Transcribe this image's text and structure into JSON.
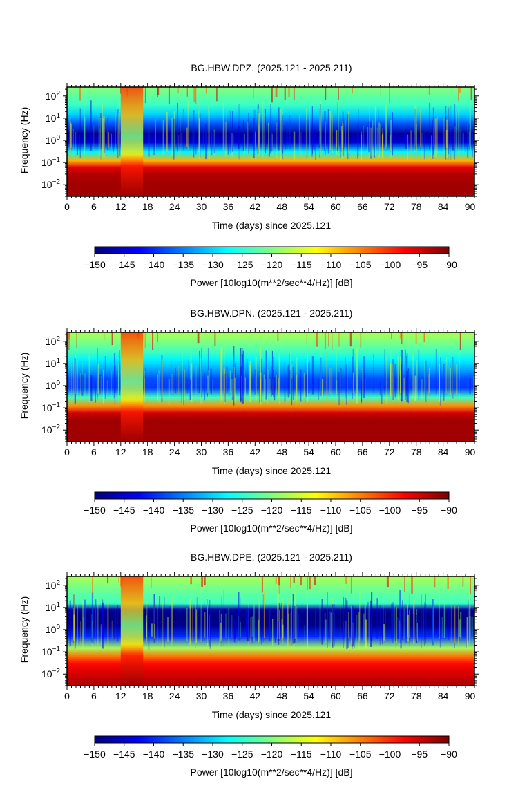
{
  "figure": {
    "background": "#ffffff"
  },
  "colormap": {
    "stops": [
      "#00007f",
      "#0000ff",
      "#007fff",
      "#00ffff",
      "#7fff7f",
      "#ffff00",
      "#ff7f00",
      "#ff0000",
      "#7f0000"
    ]
  },
  "chart_data": [
    {
      "type": "heatmap",
      "title": "BG.HBW.DPZ. (2025.121 - 2025.211)",
      "xlabel": "Time (days) since 2025.121",
      "ylabel": "Frequency (Hz)",
      "x_ticks": [
        0,
        6,
        12,
        18,
        24,
        30,
        36,
        42,
        48,
        54,
        60,
        66,
        72,
        78,
        84,
        90
      ],
      "xlim": [
        0,
        91
      ],
      "y_scale": "log",
      "y_ticks": [
        {
          "exp": 2,
          "value": 100
        },
        {
          "exp": 1,
          "value": 10
        },
        {
          "exp": 0,
          "value": 1
        },
        {
          "exp": -1,
          "value": 0.1
        },
        {
          "exp": -2,
          "value": 0.01
        }
      ],
      "ylim": [
        0.003,
        250
      ],
      "colorbar": {
        "label": "Power [10log10(m**2/sec**4/Hz)] [dB]",
        "range": [
          -150,
          -90
        ],
        "ticks": [
          -150,
          -145,
          -140,
          -135,
          -130,
          -125,
          -120,
          -115,
          -110,
          -105,
          -100,
          -95,
          -90
        ]
      },
      "profile": {
        "f_hz": [
          200,
          100,
          40,
          15,
          6,
          2,
          0.8,
          0.3,
          0.12,
          0.06,
          0.03,
          0.01,
          0.004
        ],
        "power_db": [
          -120,
          -122,
          -124,
          -130,
          -137,
          -148,
          -145,
          -128,
          -108,
          -96,
          -93,
          -92,
          -92
        ]
      },
      "gap_days": [
        12,
        17
      ],
      "variability": 0.8
    },
    {
      "type": "heatmap",
      "title": "BG.HBW.DPN. (2025.121 - 2025.211)",
      "xlabel": "Time (days) since 2025.121",
      "ylabel": "Frequency (Hz)",
      "x_ticks": [
        0,
        6,
        12,
        18,
        24,
        30,
        36,
        42,
        48,
        54,
        60,
        66,
        72,
        78,
        84,
        90
      ],
      "xlim": [
        0,
        91
      ],
      "y_scale": "log",
      "y_ticks": [
        {
          "exp": 2,
          "value": 100
        },
        {
          "exp": 1,
          "value": 10
        },
        {
          "exp": 0,
          "value": 1
        },
        {
          "exp": -1,
          "value": 0.1
        },
        {
          "exp": -2,
          "value": 0.01
        }
      ],
      "ylim": [
        0.003,
        250
      ],
      "colorbar": {
        "label": "Power [10log10(m**2/sec**4/Hz)] [dB]",
        "range": [
          -150,
          -90
        ],
        "ticks": [
          -150,
          -145,
          -140,
          -135,
          -130,
          -125,
          -120,
          -115,
          -110,
          -105,
          -100,
          -95,
          -90
        ]
      },
      "profile": {
        "f_hz": [
          200,
          100,
          40,
          15,
          6,
          2,
          0.8,
          0.3,
          0.12,
          0.06,
          0.03,
          0.01,
          0.004
        ],
        "power_db": [
          -118,
          -120,
          -123,
          -128,
          -132,
          -138,
          -139,
          -124,
          -106,
          -95,
          -92,
          -92,
          -92
        ]
      },
      "gap_days": [
        12,
        17
      ],
      "variability": 0.9
    },
    {
      "type": "heatmap",
      "title": "BG.HBW.DPE. (2025.121 - 2025.211)",
      "xlabel": "Time (days) since 2025.121",
      "ylabel": "Frequency (Hz)",
      "x_ticks": [
        0,
        6,
        12,
        18,
        24,
        30,
        36,
        42,
        48,
        54,
        60,
        66,
        72,
        78,
        84,
        90
      ],
      "xlim": [
        0,
        91
      ],
      "y_scale": "log",
      "y_ticks": [
        {
          "exp": 2,
          "value": 100
        },
        {
          "exp": 1,
          "value": 10
        },
        {
          "exp": 0,
          "value": 1
        },
        {
          "exp": -1,
          "value": 0.1
        },
        {
          "exp": -2,
          "value": 0.01
        }
      ],
      "ylim": [
        0.003,
        250
      ],
      "colorbar": {
        "label": "Power [10log10(m**2/sec**4/Hz)] [dB]",
        "range": [
          -150,
          -90
        ],
        "ticks": [
          -150,
          -145,
          -140,
          -135,
          -130,
          -125,
          -120,
          -115,
          -110,
          -105,
          -100,
          -95,
          -90
        ]
      },
      "profile": {
        "f_hz": [
          200,
          100,
          40,
          15,
          8,
          4,
          1.5,
          0.5,
          0.15,
          0.06,
          0.03,
          0.01,
          0.004
        ],
        "power_db": [
          -118,
          -120,
          -122,
          -124,
          -148,
          -150,
          -149,
          -140,
          -118,
          -104,
          -98,
          -95,
          -93
        ]
      },
      "gap_days": [
        12,
        17
      ],
      "variability": 1.0
    }
  ]
}
